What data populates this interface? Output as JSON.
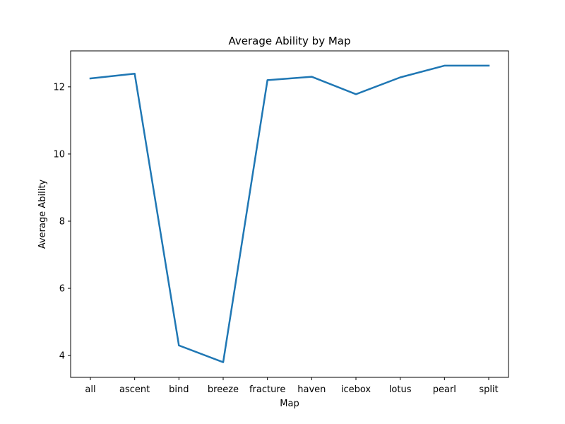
{
  "chart_data": {
    "type": "line",
    "title": "Average Ability by Map",
    "xlabel": "Map",
    "ylabel": "Average Ability",
    "categories": [
      "all",
      "ascent",
      "bind",
      "breeze",
      "fracture",
      "haven",
      "icebox",
      "lotus",
      "pearl",
      "split"
    ],
    "series": [
      {
        "values": [
          12.25,
          12.39,
          4.3,
          3.8,
          12.2,
          12.3,
          11.78,
          12.28,
          12.63,
          12.63
        ],
        "color": "#1f77b4"
      }
    ],
    "ylim": [
      3.35,
      13.07
    ],
    "yticks": [
      4,
      6,
      8,
      10,
      12
    ],
    "ytick_labels": [
      "4",
      "6",
      "8",
      "10",
      "12"
    ],
    "grid": false,
    "legend": "none"
  }
}
